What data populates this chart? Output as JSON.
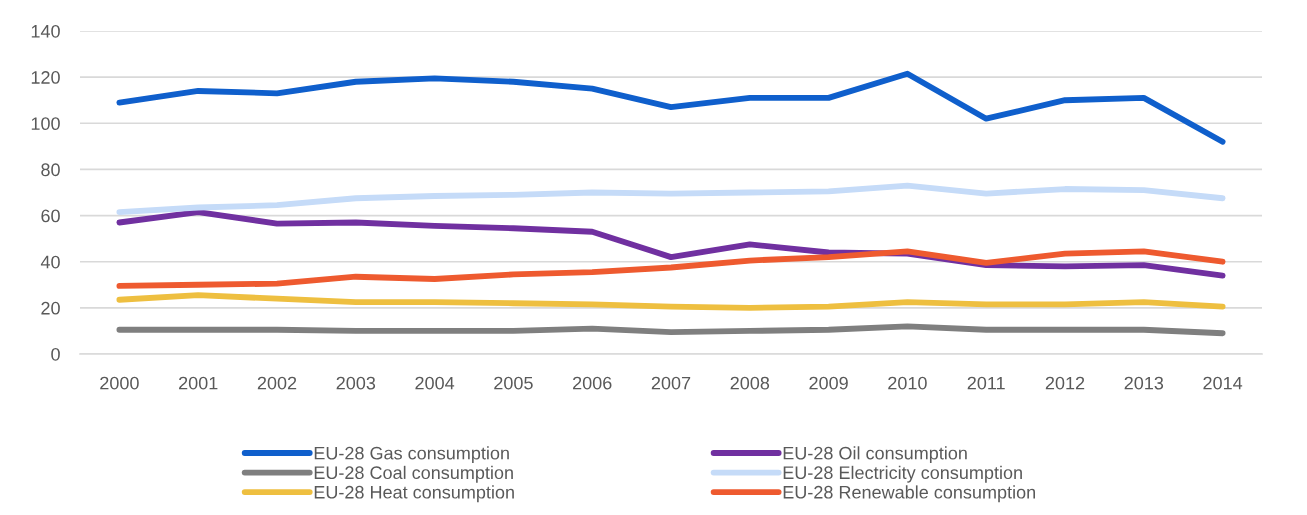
{
  "chart_data": {
    "type": "line",
    "categories": [
      "2000",
      "2001",
      "2002",
      "2003",
      "2004",
      "2005",
      "2006",
      "2007",
      "2008",
      "2009",
      "2010",
      "2011",
      "2012",
      "2013",
      "2014"
    ],
    "series": [
      {
        "name": "EU-28 Gas consumption",
        "color": "#0f5fcc",
        "values": [
          109,
          114,
          113,
          118,
          119.5,
          118,
          115,
          107,
          111,
          111,
          121.5,
          102,
          110,
          111,
          92
        ]
      },
      {
        "name": "EU-28 Oil consumption",
        "color": "#7030a0",
        "values": [
          57,
          61.5,
          56.5,
          57,
          55.5,
          54.5,
          53,
          42,
          47.5,
          44,
          43.5,
          38.5,
          38,
          38.5,
          34
        ]
      },
      {
        "name": "EU-28 Coal consumption",
        "color": "#7f7f7f",
        "values": [
          10.5,
          10.5,
          10.5,
          10,
          10,
          10,
          11,
          9.5,
          10,
          10.5,
          12,
          10.5,
          10.5,
          10.5,
          9
        ]
      },
      {
        "name": "EU-28 Electricity consumption",
        "color": "#c5dbf8",
        "values": [
          61.5,
          63.5,
          64.5,
          67.5,
          68.5,
          69,
          70,
          69.5,
          70,
          70.5,
          73,
          69.5,
          71.5,
          71,
          67.5
        ]
      },
      {
        "name": "EU-28 Heat consumption",
        "color": "#eebf40",
        "values": [
          23.5,
          25.5,
          24,
          22.5,
          22.5,
          22,
          21.5,
          20.5,
          20,
          20.5,
          22.5,
          21.5,
          21.5,
          22.5,
          20.5
        ]
      },
      {
        "name": "EU-28 Renewable consumption",
        "color": "#ee5a2f",
        "values": [
          29.5,
          30,
          30.5,
          33.5,
          32.5,
          34.5,
          35.5,
          37.5,
          40.5,
          42,
          44.5,
          39.5,
          43.5,
          44.5,
          40
        ]
      }
    ],
    "ylim": [
      0,
      140
    ],
    "yticks": [
      0,
      20,
      40,
      60,
      80,
      100,
      120,
      140
    ],
    "grid": "y",
    "legend": "bottom",
    "line_style": "solid"
  }
}
